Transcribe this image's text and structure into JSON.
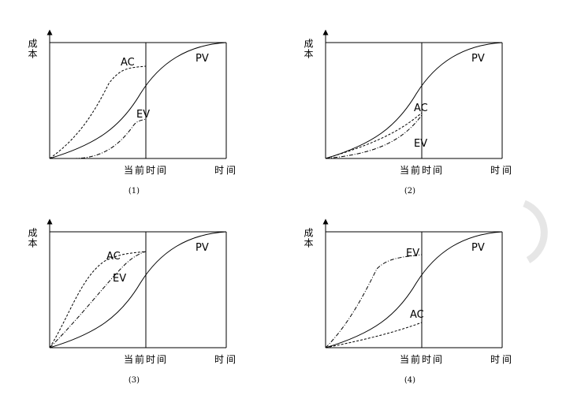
{
  "panels": [
    {
      "y_label": "成本",
      "x_label_current": "当前时间",
      "x_label_end": "时间",
      "caption": "(1)",
      "curve_labels": {
        "pv": "PV",
        "ac": "AC",
        "ev": "EV"
      }
    },
    {
      "y_label": "成本",
      "x_label_current": "当前时间",
      "x_label_end": "时间",
      "caption": "(2)",
      "curve_labels": {
        "pv": "PV",
        "ac": "AC",
        "ev": "EV"
      }
    },
    {
      "y_label": "成本",
      "x_label_current": "当前时间",
      "x_label_end": "时间",
      "caption": "(3)",
      "curve_labels": {
        "pv": "PV",
        "ac": "AC",
        "ev": "EV"
      }
    },
    {
      "y_label": "成本",
      "x_label_current": "当前时间",
      "x_label_end": "时间",
      "caption": "(4)",
      "curve_labels": {
        "pv": "PV",
        "ac": "AC",
        "ev": "EV"
      }
    }
  ]
}
